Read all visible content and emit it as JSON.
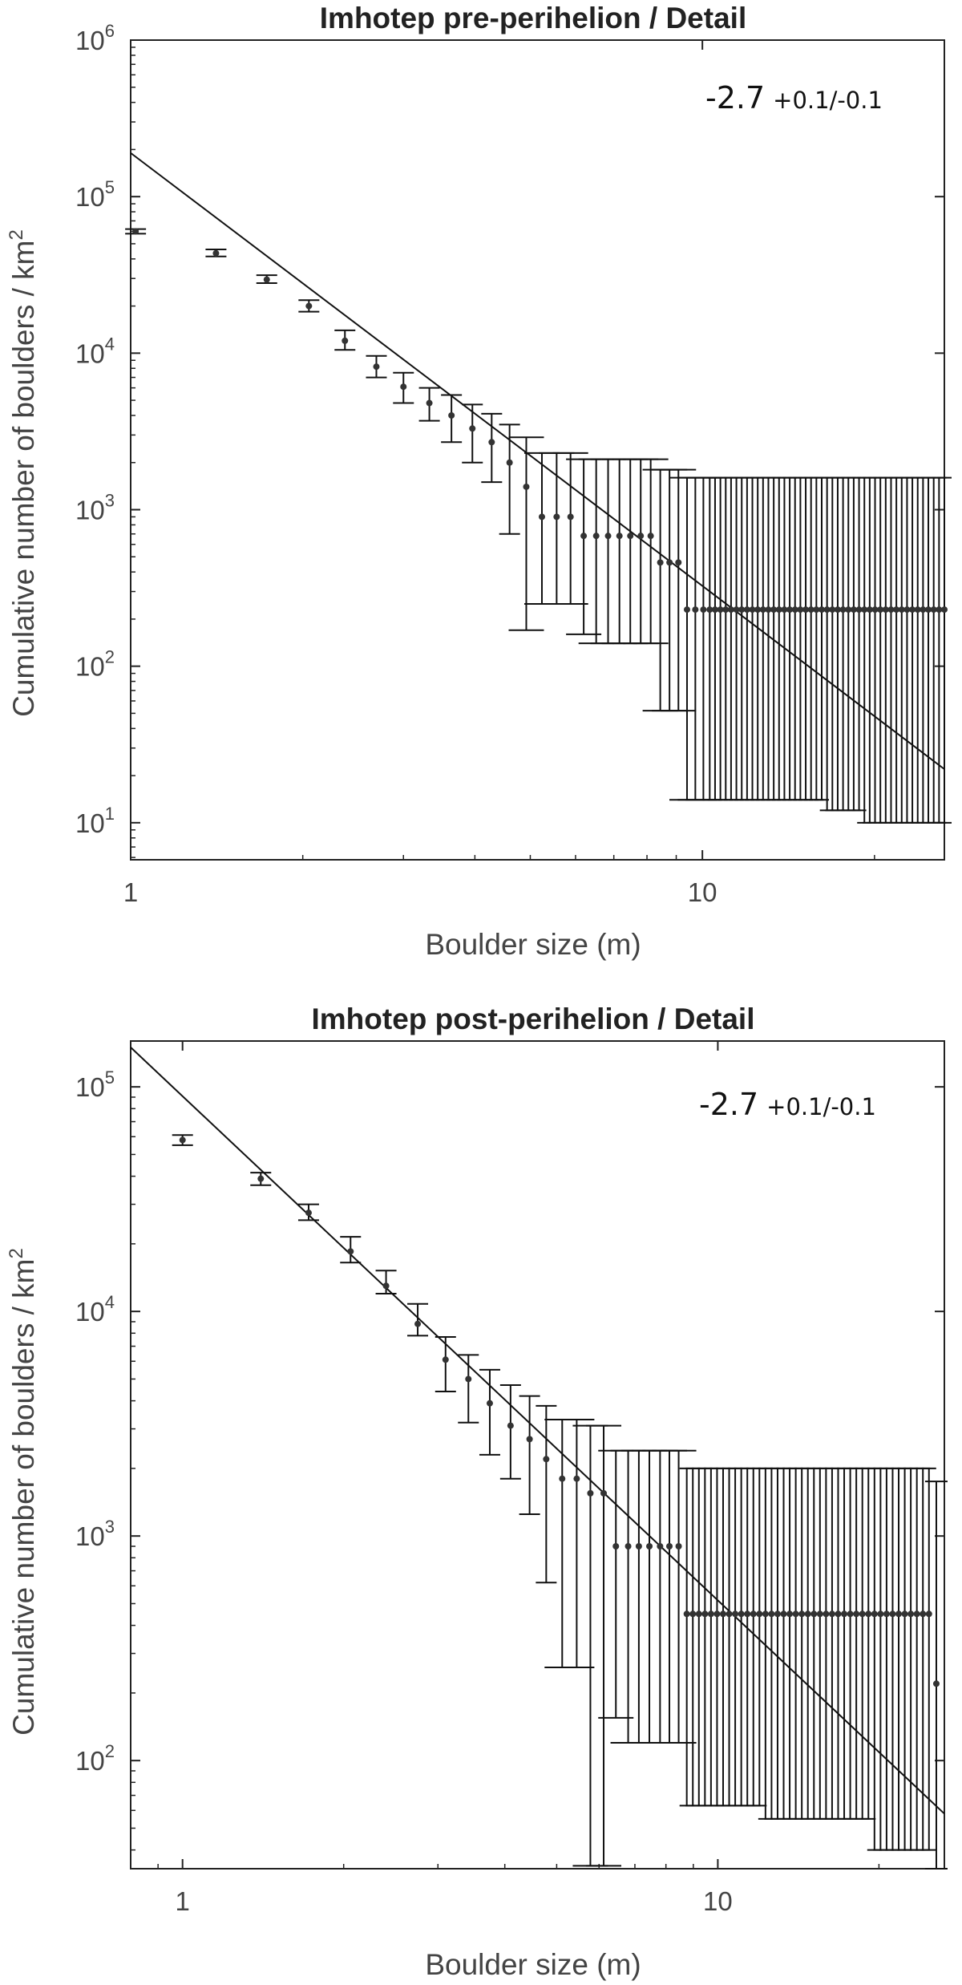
{
  "chart_data": [
    {
      "type": "scatter",
      "title": "Imhotep pre-perihelion / Detail",
      "xlabel": "Boulder size (m)",
      "ylabel": "Cumulative number of boulders / km",
      "ylabel_sup": "2",
      "x_scale": "log",
      "y_scale": "log",
      "xlim": [
        1,
        26.5
      ],
      "ylim": [
        5.8,
        1000000
      ],
      "x_ticks": [
        {
          "value": 1,
          "label": "1"
        },
        {
          "value": 10,
          "label": "10"
        }
      ],
      "y_ticks": [
        {
          "value": 10,
          "base": "10",
          "exp": "1"
        },
        {
          "value": 100,
          "base": "10",
          "exp": "2"
        },
        {
          "value": 1000,
          "base": "10",
          "exp": "3"
        },
        {
          "value": 10000,
          "base": "10",
          "exp": "4"
        },
        {
          "value": 100000,
          "base": "10",
          "exp": "5"
        },
        {
          "value": 1000000,
          "base": "10",
          "exp": "6"
        }
      ],
      "slope_label": "-2.7",
      "slope_error": "+0.1/-0.1",
      "fit": {
        "x": [
          1,
          26.5
        ],
        "y": [
          190000,
          22
        ]
      },
      "grid": false,
      "series": [
        {
          "x": [
            1.02,
            1.41,
            1.73,
            2.05,
            2.37,
            2.69,
            3.0,
            3.33,
            3.64,
            3.96,
            4.28,
            4.6,
            4.92,
            5.24,
            5.56,
            5.88,
            6.2,
            6.52,
            6.84,
            7.16,
            7.48,
            7.8,
            8.12,
            8.44,
            8.76,
            9.08,
            9.4,
            9.72,
            10.04
          ],
          "y": [
            60000,
            43500,
            29500,
            20000,
            12000,
            8200,
            6100,
            4800,
            4000,
            3300,
            2700,
            2000,
            1400,
            900,
            900,
            900,
            680,
            680,
            680,
            680,
            680,
            680,
            680,
            460,
            460,
            460,
            230,
            230,
            230
          ],
          "yhi": [
            62000,
            46000,
            31500,
            21800,
            14000,
            9600,
            7500,
            6000,
            5400,
            4700,
            4100,
            3500,
            2900,
            2300,
            2300,
            2300,
            2100,
            2100,
            2100,
            2100,
            2100,
            2100,
            2100,
            1800,
            1800,
            1800,
            1600,
            1600,
            1600
          ],
          "ylo": [
            58000,
            41500,
            28000,
            18400,
            10500,
            7000,
            4800,
            3700,
            2700,
            2000,
            1500,
            700,
            170,
            250,
            250,
            250,
            160,
            140,
            140,
            140,
            140,
            140,
            140,
            52,
            52,
            52,
            14,
            14,
            14
          ]
        }
      ],
      "tail": {
        "x_from": 10.3,
        "x_to": 26.5,
        "y": 230,
        "yhi": 1600,
        "ylo": [
          14,
          14,
          14,
          14,
          14,
          14,
          14,
          14,
          14,
          14,
          14,
          14,
          14,
          14,
          14,
          14,
          14,
          14,
          14,
          14,
          14,
          14,
          12,
          12,
          12,
          12,
          12,
          12,
          12,
          10,
          10,
          10,
          10,
          10,
          10,
          10,
          10,
          10,
          10,
          10,
          10,
          10,
          10,
          10,
          10
        ]
      }
    },
    {
      "type": "scatter",
      "title": "Imhotep post-perihelion / Detail",
      "xlabel": "Boulder size (m)",
      "ylabel": "Cumulative number of boulders / km",
      "ylabel_sup": "2",
      "x_scale": "log",
      "y_scale": "log",
      "xlim": [
        0.8,
        26.5
      ],
      "ylim": [
        33,
        160000
      ],
      "x_ticks": [
        {
          "value": 1,
          "label": "1"
        },
        {
          "value": 10,
          "label": "10"
        }
      ],
      "y_ticks": [
        {
          "value": 100,
          "base": "10",
          "exp": "2"
        },
        {
          "value": 1000,
          "base": "10",
          "exp": "3"
        },
        {
          "value": 10000,
          "base": "10",
          "exp": "4"
        },
        {
          "value": 100000,
          "base": "10",
          "exp": "5"
        }
      ],
      "slope_label": "-2.7",
      "slope_error": "+0.1/-0.1",
      "fit": {
        "x": [
          0.8,
          26.5
        ],
        "y": [
          150000,
          58
        ]
      },
      "grid": false,
      "series": [
        {
          "x": [
            1.0,
            1.4,
            1.72,
            2.06,
            2.4,
            2.75,
            3.1,
            3.42,
            3.75,
            4.1,
            4.45,
            4.78,
            5.12,
            5.45,
            5.78,
            6.12,
            6.45,
            6.8,
            7.12,
            7.45,
            7.8,
            8.12,
            8.45
          ],
          "y": [
            58000,
            39000,
            27500,
            18500,
            13000,
            8800,
            6100,
            5000,
            3900,
            3100,
            2700,
            2200,
            1800,
            1800,
            1550,
            1550,
            900,
            900,
            900,
            900,
            900,
            900,
            900
          ],
          "yhi": [
            61000,
            41500,
            30000,
            21500,
            15200,
            10800,
            7700,
            6400,
            5500,
            4700,
            4200,
            3800,
            3300,
            3300,
            3100,
            3100,
            2400,
            2400,
            2400,
            2400,
            2400,
            2400,
            2400
          ],
          "ylo": [
            55000,
            36500,
            25500,
            16500,
            12000,
            7800,
            4400,
            3200,
            2300,
            1800,
            1250,
            620,
            260,
            260,
            34,
            34,
            155,
            120,
            120,
            120,
            120,
            120,
            120
          ]
        }
      ],
      "tail": {
        "x_from": 8.75,
        "x_to": 24.8,
        "y": 450,
        "yhi": 2000,
        "ylo": [
          63,
          63,
          63,
          63,
          63,
          63,
          63,
          63,
          63,
          63,
          63,
          63,
          63,
          55,
          55,
          55,
          55,
          55,
          55,
          55,
          55,
          55,
          55,
          55,
          55,
          55,
          55,
          55,
          55,
          55,
          55,
          40,
          40,
          40,
          40,
          40,
          40,
          40,
          40,
          40,
          40
        ]
      },
      "extra_point": {
        "x": 25.6,
        "y": 220,
        "yhi": 1750,
        "ylo": 33
      }
    }
  ]
}
